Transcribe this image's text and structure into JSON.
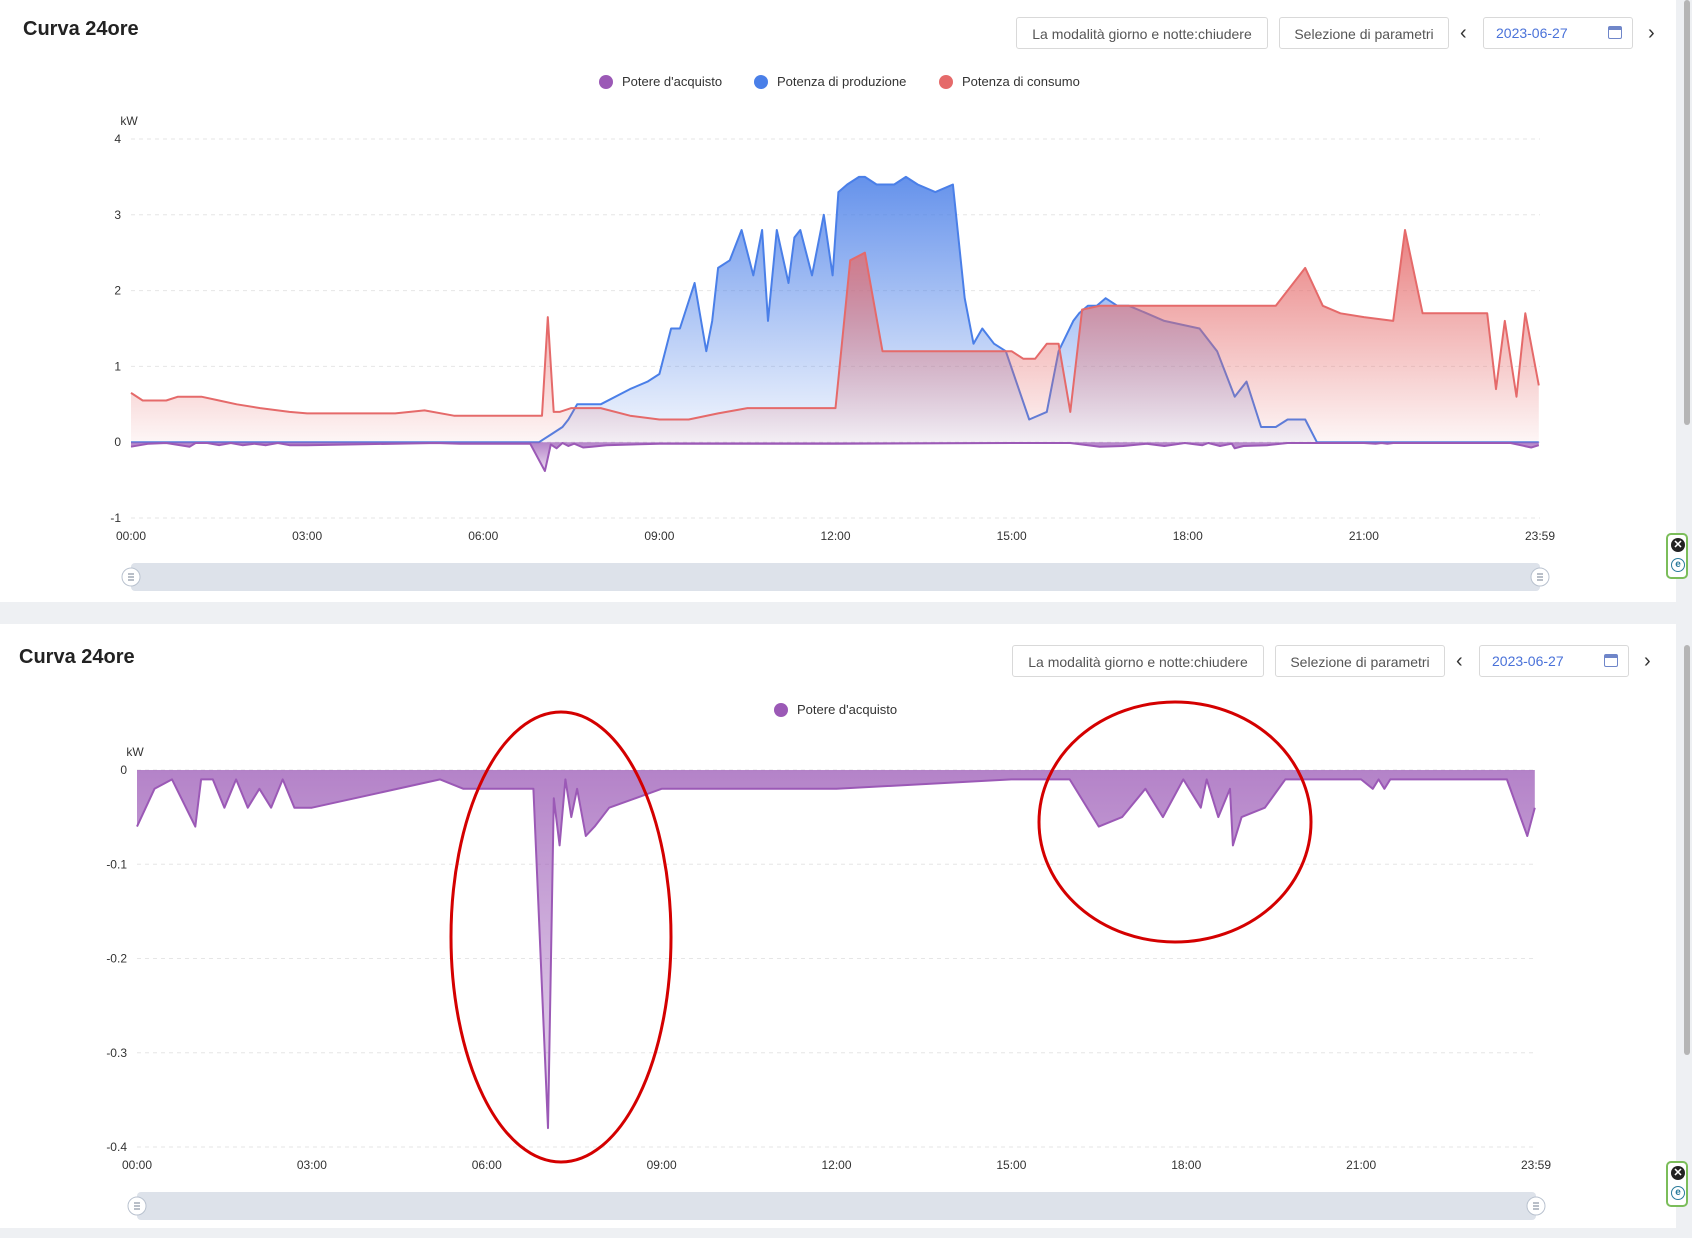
{
  "panels": [
    {
      "title": "Curva 24ore",
      "daynight_label": "La modalità giorno e notte:chiudere",
      "params_label": "Selezione di parametri",
      "prev_label": "‹",
      "next_label": "›",
      "date": "2023-06-27"
    },
    {
      "title": "Curva 24ore",
      "daynight_label": "La modalità giorno e notte:chiudere",
      "params_label": "Selezione di parametri",
      "prev_label": "‹",
      "next_label": "›",
      "date": "2023-06-27"
    }
  ],
  "legend": {
    "purchase": "Potere d'acquisto",
    "production": "Potenza di produzione",
    "consumption": "Potenza di consumo"
  },
  "colors": {
    "purchase": "#9b59b6",
    "production": "#4a7fe8",
    "consumption": "#e56a6a",
    "annotation": "#d40000"
  },
  "side_widget": {
    "close": "✕",
    "logo": "e"
  },
  "chart_data": [
    {
      "type": "area",
      "ylabel": "kW",
      "ylim": [
        -1,
        4
      ],
      "yticks": [
        "4",
        "3",
        "2",
        "1",
        "0",
        "-1"
      ],
      "xlim": [
        0,
        24
      ],
      "xticks": [
        "00:00",
        "03:00",
        "06:00",
        "09:00",
        "12:00",
        "15:00",
        "18:00",
        "21:00",
        "23:59"
      ],
      "grid": true,
      "legend_position": "top-center",
      "series": [
        {
          "name": "Potere d'acquisto",
          "x": [
            0,
            0.3,
            0.6,
            1,
            1.1,
            1.3,
            1.5,
            1.7,
            1.9,
            2.1,
            2.3,
            2.5,
            2.7,
            3,
            5.2,
            5.6,
            5.9,
            6.5,
            6.8,
            7.05,
            7.15,
            7.25,
            7.35,
            7.45,
            7.55,
            7.7,
            7.85,
            8.1,
            9,
            12,
            15,
            16,
            16.5,
            16.9,
            17.3,
            17.6,
            17.95,
            18.25,
            18.35,
            18.55,
            18.75,
            18.8,
            18.95,
            19.35,
            19.7,
            20.5,
            21,
            21.2,
            21.3,
            21.4,
            21.5,
            21.65,
            23.5,
            23.85,
            23.98
          ],
          "y": [
            -0.06,
            -0.02,
            -0.01,
            -0.06,
            -0.01,
            -0.01,
            -0.04,
            -0.01,
            -0.04,
            -0.02,
            -0.04,
            -0.01,
            -0.04,
            -0.04,
            -0.01,
            -0.02,
            -0.02,
            -0.02,
            -0.02,
            -0.38,
            -0.03,
            -0.08,
            -0.01,
            -0.05,
            -0.02,
            -0.07,
            -0.06,
            -0.04,
            -0.02,
            -0.02,
            -0.01,
            -0.01,
            -0.06,
            -0.05,
            -0.02,
            -0.05,
            -0.01,
            -0.04,
            -0.01,
            -0.05,
            -0.02,
            -0.08,
            -0.05,
            -0.04,
            -0.01,
            -0.01,
            -0.01,
            -0.02,
            -0.01,
            -0.02,
            -0.01,
            -0.01,
            -0.01,
            -0.07,
            -0.04
          ]
        },
        {
          "name": "Potenza di produzione",
          "x": [
            0,
            6.5,
            6.75,
            6.95,
            7.15,
            7.35,
            7.45,
            7.6,
            8,
            8.5,
            8.8,
            9,
            9.2,
            9.35,
            9.6,
            9.8,
            9.9,
            10,
            10.2,
            10.4,
            10.6,
            10.75,
            10.85,
            11,
            11.2,
            11.3,
            11.4,
            11.6,
            11.8,
            11.95,
            12.05,
            12.2,
            12.4,
            12.5,
            12.7,
            13,
            13.2,
            13.4,
            13.7,
            14,
            14.2,
            14.35,
            14.5,
            14.7,
            14.9,
            15.3,
            15.6,
            15.8,
            16.05,
            16.15,
            16.3,
            16.45,
            16.6,
            16.8,
            17,
            17.3,
            17.6,
            18.2,
            18.5,
            18.8,
            19,
            19.25,
            19.5,
            19.7,
            20,
            20.2,
            20.5,
            20.8,
            21,
            23.98
          ],
          "y": [
            0,
            0,
            0,
            0,
            0.1,
            0.2,
            0.3,
            0.5,
            0.5,
            0.7,
            0.8,
            0.9,
            1.5,
            1.5,
            2.1,
            1.2,
            1.6,
            2.3,
            2.4,
            2.8,
            2.2,
            2.8,
            1.6,
            2.8,
            2.1,
            2.7,
            2.8,
            2.2,
            3,
            2.2,
            3.3,
            3.4,
            3.5,
            3.5,
            3.4,
            3.4,
            3.5,
            3.4,
            3.3,
            3.4,
            1.9,
            1.3,
            1.5,
            1.3,
            1.2,
            0.3,
            0.4,
            1.2,
            1.6,
            1.7,
            1.8,
            1.8,
            1.9,
            1.8,
            1.8,
            1.7,
            1.6,
            1.5,
            1.2,
            0.6,
            0.8,
            0.2,
            0.2,
            0.3,
            0.3,
            0,
            0,
            0,
            0,
            0
          ]
        },
        {
          "name": "Potenza di consumo",
          "x": [
            0,
            0.2,
            0.6,
            0.8,
            1.2,
            1.5,
            1.8,
            2.2,
            2.7,
            3,
            3.5,
            4,
            4.5,
            5,
            5.5,
            5.8,
            6.5,
            7,
            7.1,
            7.2,
            7.3,
            7.5,
            8,
            8.5,
            9,
            9.5,
            10,
            10.5,
            11,
            11.5,
            12,
            12.25,
            12.5,
            12.8,
            13,
            13.3,
            13.6,
            14,
            14.5,
            14.8,
            15,
            15.2,
            15.4,
            15.6,
            15.8,
            16,
            16.2,
            16.5,
            17,
            17.5,
            18,
            18.5,
            19,
            19.5,
            20,
            20.3,
            20.6,
            21,
            21.5,
            21.7,
            22,
            22.5,
            22.9,
            23.1,
            23.25,
            23.4,
            23.6,
            23.75,
            23.98
          ],
          "y": [
            0.65,
            0.55,
            0.55,
            0.6,
            0.6,
            0.55,
            0.5,
            0.45,
            0.4,
            0.38,
            0.38,
            0.38,
            0.38,
            0.42,
            0.35,
            0.35,
            0.35,
            0.35,
            1.65,
            0.4,
            0.4,
            0.45,
            0.45,
            0.35,
            0.3,
            0.3,
            0.38,
            0.45,
            0.45,
            0.45,
            0.45,
            2.4,
            2.5,
            1.2,
            1.2,
            1.2,
            1.2,
            1.2,
            1.2,
            1.2,
            1.2,
            1.1,
            1.1,
            1.3,
            1.3,
            0.4,
            1.75,
            1.8,
            1.8,
            1.8,
            1.8,
            1.8,
            1.8,
            1.8,
            2.3,
            1.8,
            1.7,
            1.65,
            1.6,
            2.8,
            1.7,
            1.7,
            1.7,
            1.7,
            0.7,
            1.6,
            0.6,
            1.7,
            0.75
          ]
        }
      ]
    },
    {
      "type": "area",
      "ylabel": "kW",
      "ylim": [
        -0.4,
        0
      ],
      "yticks": [
        "0",
        "-0.1",
        "-0.2",
        "-0.3",
        "-0.4"
      ],
      "xlim": [
        0,
        24
      ],
      "xticks": [
        "00:00",
        "03:00",
        "06:00",
        "09:00",
        "12:00",
        "15:00",
        "18:00",
        "21:00",
        "23:59"
      ],
      "grid": true,
      "legend_position": "top-center",
      "series": [
        {
          "name": "Potere d'acquisto",
          "x": [
            0,
            0.3,
            0.6,
            1,
            1.1,
            1.3,
            1.5,
            1.7,
            1.9,
            2.1,
            2.3,
            2.5,
            2.7,
            3,
            5.2,
            5.6,
            5.9,
            6.5,
            6.8,
            7.05,
            7.15,
            7.25,
            7.35,
            7.45,
            7.55,
            7.7,
            7.85,
            8.1,
            9,
            12,
            15,
            16,
            16.5,
            16.9,
            17.3,
            17.6,
            17.95,
            18.25,
            18.35,
            18.55,
            18.75,
            18.8,
            18.95,
            19.35,
            19.7,
            20.5,
            21,
            21.2,
            21.3,
            21.4,
            21.5,
            21.65,
            23.5,
            23.85,
            23.98
          ],
          "y": [
            -0.06,
            -0.02,
            -0.01,
            -0.06,
            -0.01,
            -0.01,
            -0.04,
            -0.01,
            -0.04,
            -0.02,
            -0.04,
            -0.01,
            -0.04,
            -0.04,
            -0.01,
            -0.02,
            -0.02,
            -0.02,
            -0.02,
            -0.38,
            -0.03,
            -0.08,
            -0.01,
            -0.05,
            -0.02,
            -0.07,
            -0.06,
            -0.04,
            -0.02,
            -0.02,
            -0.01,
            -0.01,
            -0.06,
            -0.05,
            -0.02,
            -0.05,
            -0.01,
            -0.04,
            -0.01,
            -0.05,
            -0.02,
            -0.08,
            -0.05,
            -0.04,
            -0.01,
            -0.01,
            -0.01,
            -0.02,
            -0.01,
            -0.02,
            -0.01,
            -0.01,
            -0.01,
            -0.07,
            -0.04
          ]
        }
      ]
    }
  ]
}
